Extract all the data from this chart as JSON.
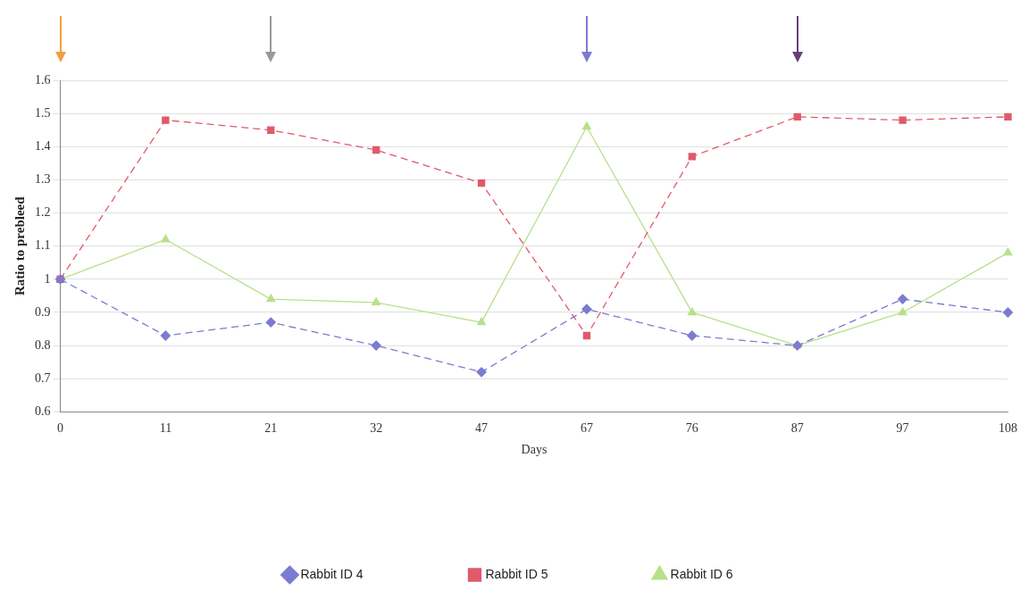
{
  "chart_data": {
    "type": "line",
    "xlabel": "Days",
    "ylabel": "Ratio to prebleed",
    "categories": [
      "0",
      "11",
      "21",
      "32",
      "47",
      "67",
      "76",
      "87",
      "97",
      "108"
    ],
    "series": [
      {
        "name": "Rabbit ID 4",
        "color": "#7b7bd0",
        "marker": "diamond",
        "line_style": "dashed",
        "values": [
          1,
          0.83,
          0.87,
          0.8,
          0.72,
          0.91,
          0.83,
          0.8,
          0.94,
          0.9
        ]
      },
      {
        "name": "Rabbit ID 5",
        "color": "#e05a6a",
        "marker": "square",
        "line_style": "dashed",
        "values": [
          1,
          1.48,
          1.45,
          1.39,
          1.29,
          0.83,
          1.37,
          1.49,
          1.48,
          1.49
        ]
      },
      {
        "name": "Rabbit ID 6",
        "color": "#b8e08a",
        "marker": "triangle",
        "line_style": "solid",
        "values": [
          1,
          1.12,
          0.94,
          0.93,
          0.87,
          1.46,
          0.9,
          0.8,
          0.9,
          1.08
        ]
      }
    ],
    "ylim": [
      0.6,
      1.6
    ],
    "yticks": [
      0.6,
      0.7,
      0.8,
      0.9,
      1,
      1.1,
      1.2,
      1.3,
      1.4,
      1.5,
      1.6
    ],
    "grid": "y",
    "legend": "bottom"
  }
}
